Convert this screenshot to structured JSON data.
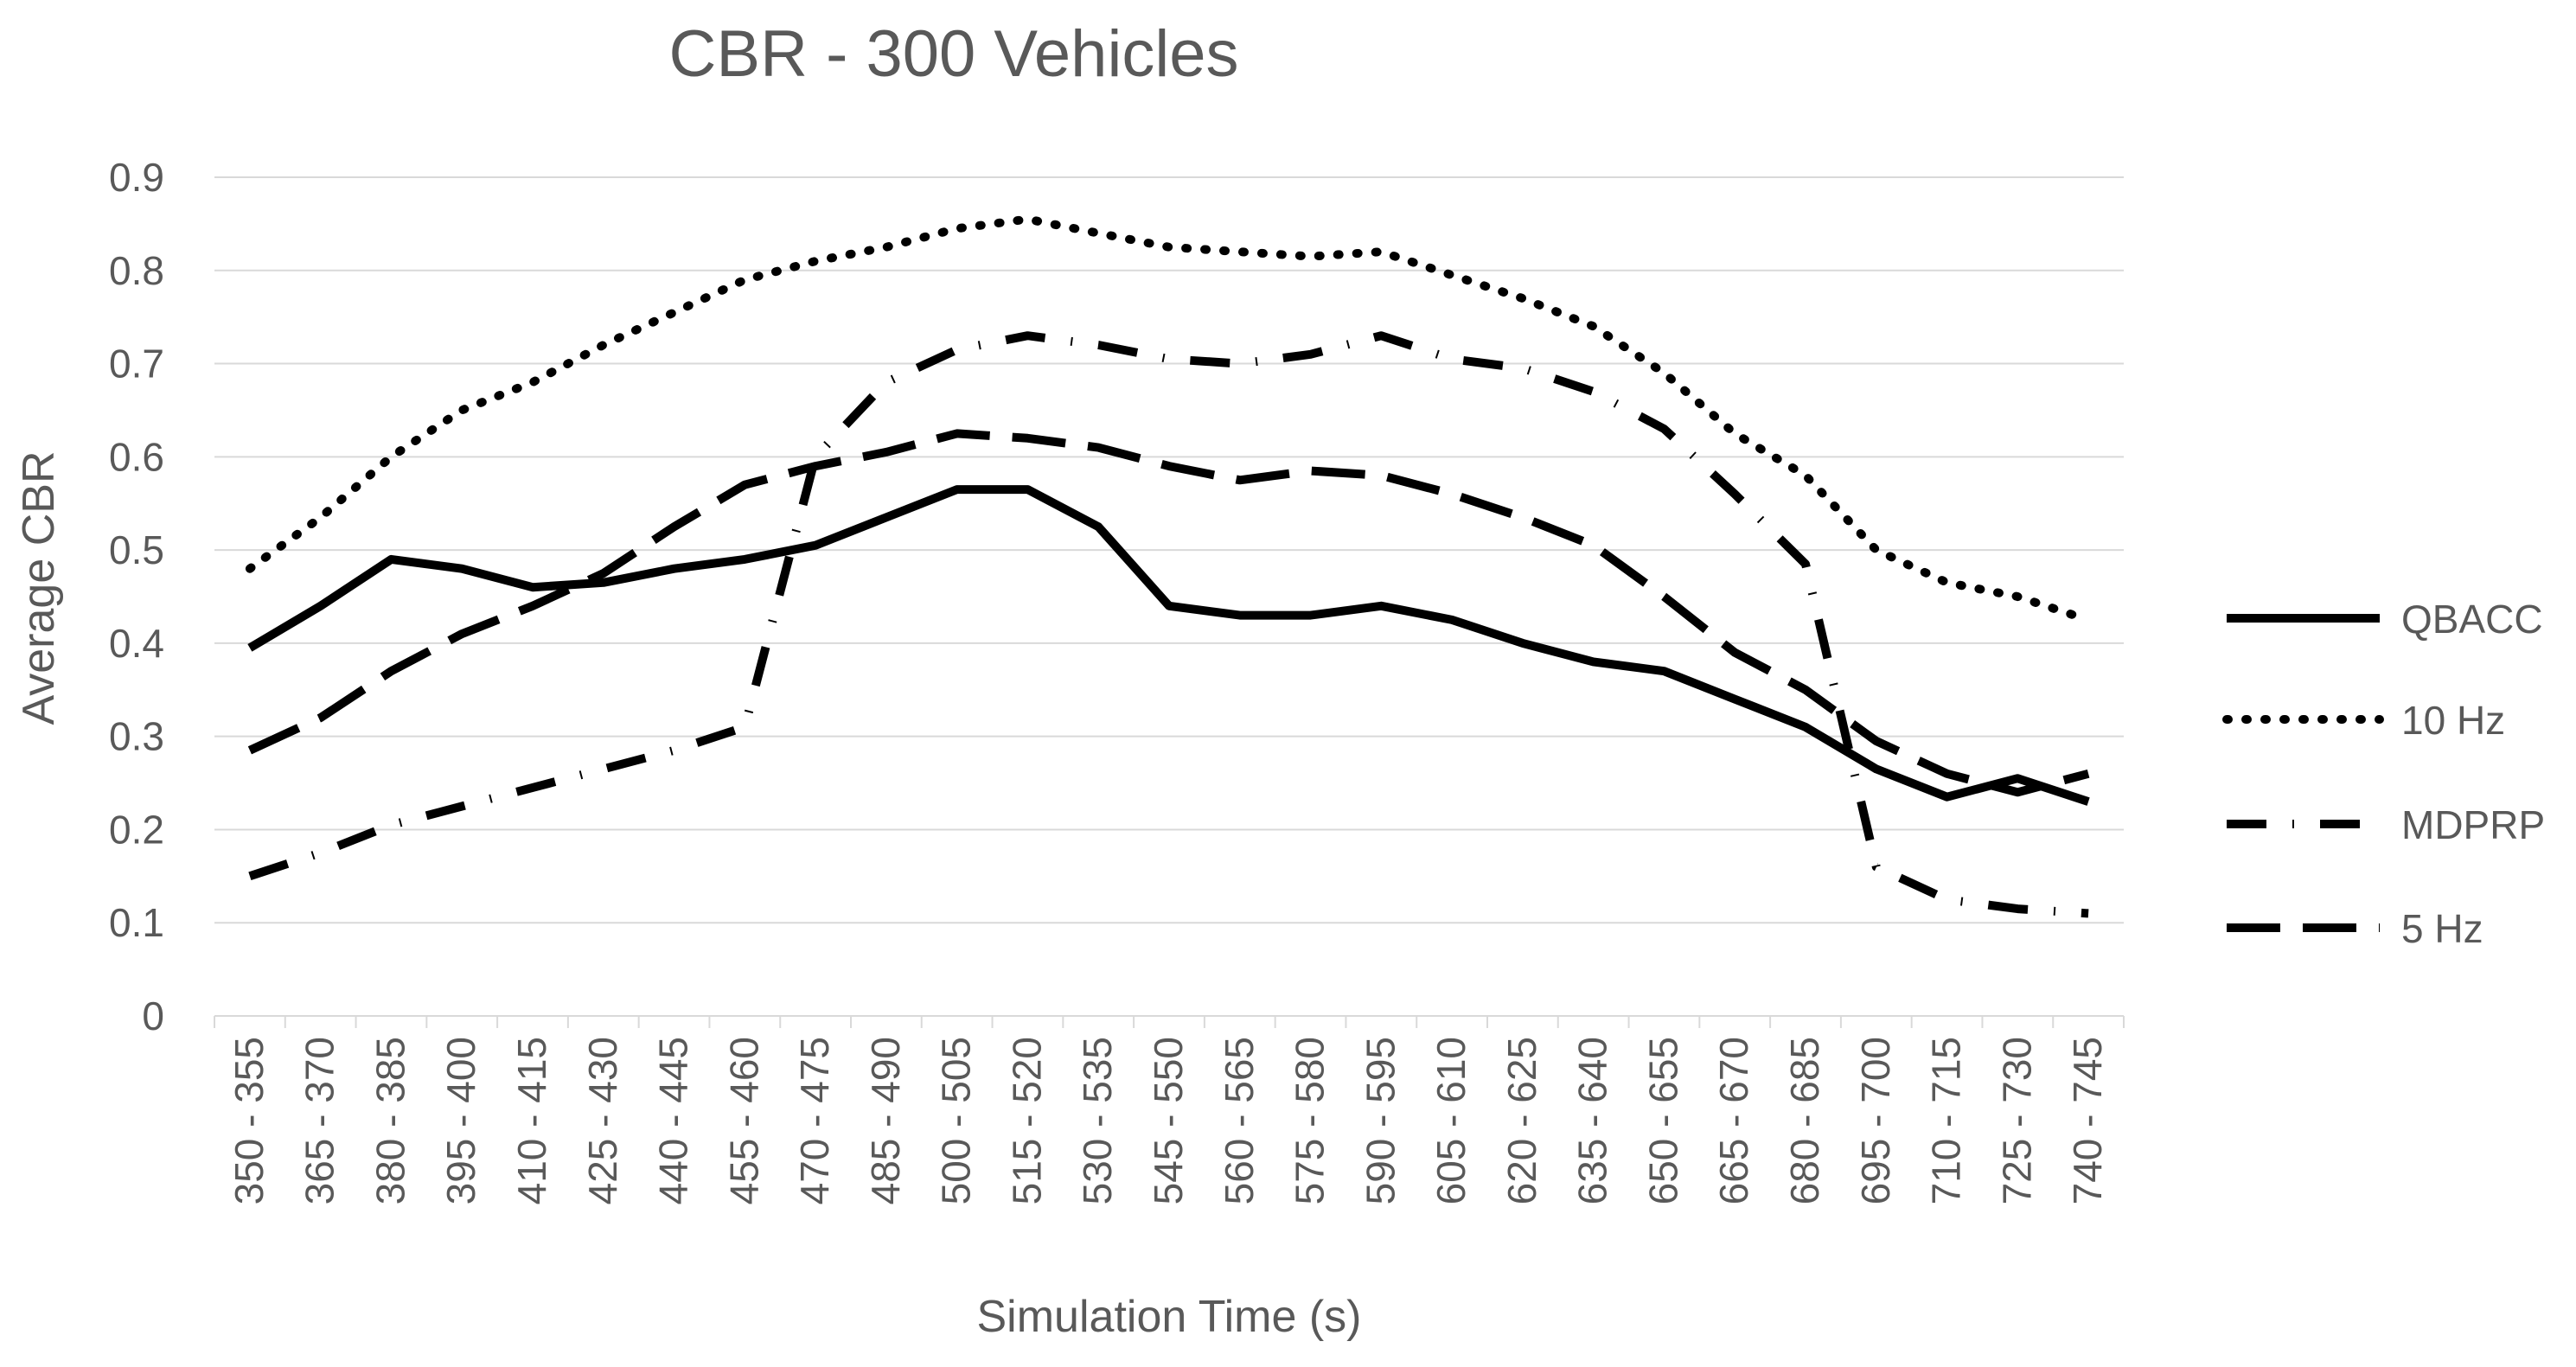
{
  "chart_data": {
    "type": "line",
    "title": "CBR - 300 Vehicles",
    "xlabel": "Simulation Time (s)",
    "ylabel": "Average  CBR",
    "ylim": [
      0,
      0.9
    ],
    "yticks": [
      "0",
      "0.1",
      "0.2",
      "0.3",
      "0.4",
      "0.5",
      "0.6",
      "0.7",
      "0.8",
      "0.9"
    ],
    "grid": true,
    "legend_position": "right",
    "categories": [
      "350 - 355",
      "365 - 370",
      "380 - 385",
      "395 - 400",
      "410 - 415",
      "425 - 430",
      "440 - 445",
      "455 - 460",
      "470 - 475",
      "485 - 490",
      "500 - 505",
      "515 - 520",
      "530 - 535",
      "545 - 550",
      "560 - 565",
      "575 - 580",
      "590 - 595",
      "605 - 610",
      "620 - 625",
      "635 - 640",
      "650 - 655",
      "665 - 670",
      "680 - 685",
      "695 - 700",
      "710 - 715",
      "725 - 730",
      "740 - 745"
    ],
    "series": [
      {
        "name": "QBACC",
        "style": "solid",
        "values": [
          0.395,
          0.44,
          0.49,
          0.48,
          0.46,
          0.465,
          0.48,
          0.49,
          0.505,
          0.535,
          0.565,
          0.565,
          0.525,
          0.44,
          0.43,
          0.43,
          0.44,
          0.425,
          0.4,
          0.38,
          0.37,
          0.34,
          0.31,
          0.265,
          0.235,
          0.255,
          0.23
        ]
      },
      {
        "name": "10 Hz",
        "style": "dotted",
        "values": [
          0.48,
          0.535,
          0.6,
          0.65,
          0.68,
          0.72,
          0.755,
          0.79,
          0.81,
          0.825,
          0.845,
          0.855,
          0.84,
          0.825,
          0.82,
          0.815,
          0.82,
          0.795,
          0.77,
          0.74,
          0.69,
          0.625,
          0.58,
          0.5,
          0.465,
          0.45,
          0.425
        ]
      },
      {
        "name": "MDPRP",
        "style": "dash-dot",
        "values": [
          0.15,
          0.175,
          0.205,
          0.225,
          0.245,
          0.265,
          0.285,
          0.31,
          0.6,
          0.68,
          0.715,
          0.73,
          0.72,
          0.705,
          0.7,
          0.71,
          0.73,
          0.705,
          0.695,
          0.67,
          0.63,
          0.56,
          0.485,
          0.16,
          0.125,
          0.115,
          0.11
        ]
      },
      {
        "name": "5 Hz",
        "style": "long-dash",
        "values": [
          0.285,
          0.32,
          0.37,
          0.41,
          0.44,
          0.475,
          0.525,
          0.57,
          0.59,
          0.605,
          0.625,
          0.62,
          0.61,
          0.59,
          0.575,
          0.585,
          0.58,
          0.56,
          0.535,
          0.505,
          0.45,
          0.39,
          0.35,
          0.295,
          0.26,
          0.24,
          0.26
        ]
      }
    ]
  }
}
